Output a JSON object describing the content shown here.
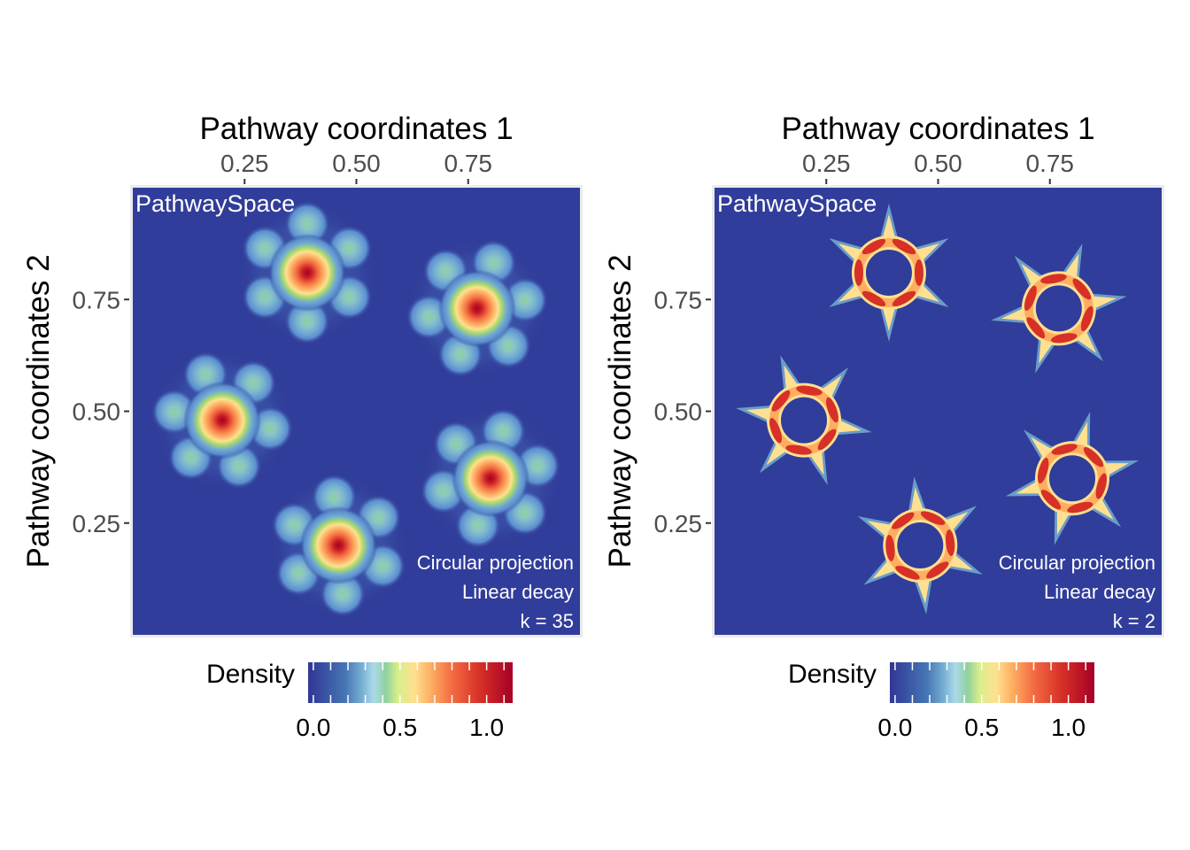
{
  "chart_data": [
    {
      "type": "heatmap",
      "title": "PathwaySpace",
      "xlabel": "Pathway coordinates 1",
      "ylabel": "Pathway coordinates 2",
      "xlim": [
        0,
        1
      ],
      "ylim": [
        0,
        1
      ],
      "xticks": [
        0.25,
        0.5,
        0.75
      ],
      "xtick_labels": [
        "0.25",
        "0.50",
        "0.75"
      ],
      "yticks": [
        0.25,
        0.5,
        0.75
      ],
      "ytick_labels": [
        "0.25",
        "0.50",
        "0.75"
      ],
      "annotations": [
        "Circular projection",
        "Linear decay",
        "k = 35"
      ],
      "colorbar": {
        "title": "Density",
        "range": [
          -0.03,
          1.15
        ],
        "ticks": [
          0.0,
          0.5,
          1.0
        ],
        "tick_labels": [
          "0.0",
          "0.5",
          "1.0"
        ]
      },
      "style": "blob",
      "clusters": [
        {
          "center": [
            0.39,
            0.81
          ],
          "peak": 1.0,
          "satellite_angle_offset": 90
        },
        {
          "center": [
            0.77,
            0.73
          ],
          "peak": 1.0,
          "satellite_angle_offset": 70
        },
        {
          "center": [
            0.2,
            0.48
          ],
          "peak": 1.0,
          "satellite_angle_offset": 110
        },
        {
          "center": [
            0.8,
            0.35
          ],
          "peak": 1.0,
          "satellite_angle_offset": 75
        },
        {
          "center": [
            0.46,
            0.2
          ],
          "peak": 1.0,
          "satellite_angle_offset": 95
        }
      ]
    },
    {
      "type": "heatmap",
      "title": "PathwaySpace",
      "xlabel": "Pathway coordinates 1",
      "ylabel": "Pathway coordinates 2",
      "xlim": [
        0,
        1
      ],
      "ylim": [
        0,
        1
      ],
      "xticks": [
        0.25,
        0.5,
        0.75
      ],
      "xtick_labels": [
        "0.25",
        "0.50",
        "0.75"
      ],
      "yticks": [
        0.25,
        0.5,
        0.75
      ],
      "ytick_labels": [
        "0.25",
        "0.50",
        "0.75"
      ],
      "annotations": [
        "Circular projection",
        "Linear decay",
        "k = 2"
      ],
      "colorbar": {
        "title": "Density",
        "range": [
          -0.03,
          1.15
        ],
        "ticks": [
          0.0,
          0.5,
          1.0
        ],
        "tick_labels": [
          "0.0",
          "0.5",
          "1.0"
        ]
      },
      "style": "star",
      "clusters": [
        {
          "center": [
            0.39,
            0.81
          ],
          "peak": 1.0,
          "satellite_angle_offset": 90
        },
        {
          "center": [
            0.77,
            0.73
          ],
          "peak": 1.0,
          "satellite_angle_offset": 70
        },
        {
          "center": [
            0.2,
            0.48
          ],
          "peak": 1.0,
          "satellite_angle_offset": 110
        },
        {
          "center": [
            0.8,
            0.35
          ],
          "peak": 1.0,
          "satellite_angle_offset": 75
        },
        {
          "center": [
            0.46,
            0.2
          ],
          "peak": 1.0,
          "satellite_angle_offset": 95
        }
      ]
    }
  ],
  "colors": {
    "background": "#313d9a",
    "panel_border": "#ebebeb",
    "palette": [
      "#313695",
      "#4575b4",
      "#74add1",
      "#abd9e9",
      "#e0f3f8",
      "#ffffbf",
      "#fee090",
      "#fdae61",
      "#f46d43",
      "#d73027",
      "#a50026"
    ],
    "annotation_text": "#ffffff"
  }
}
